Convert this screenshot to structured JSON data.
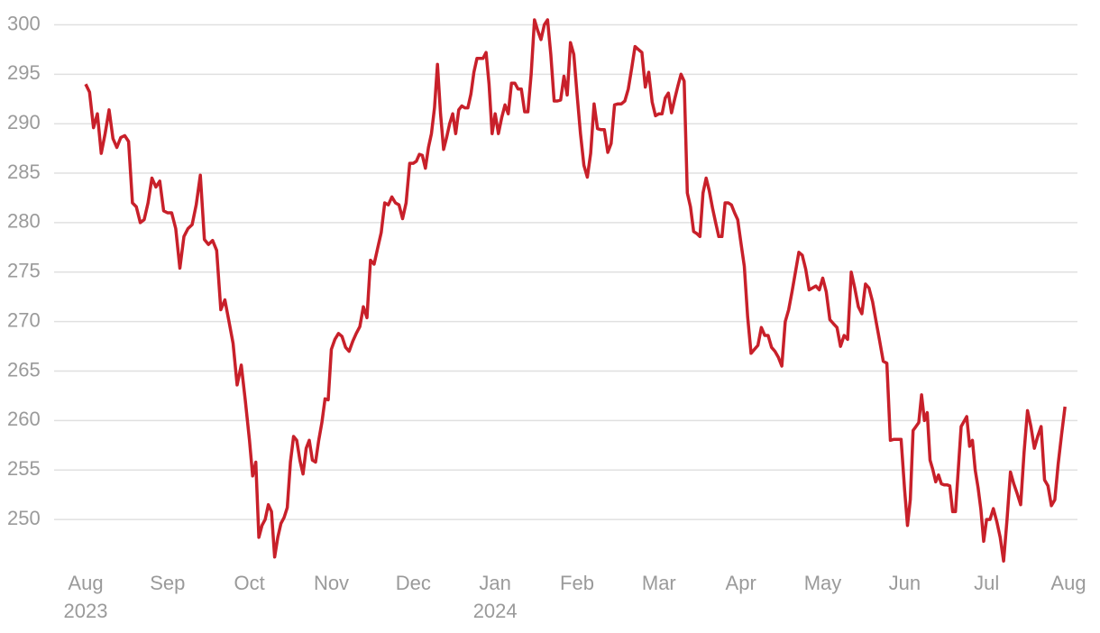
{
  "chart_data": {
    "type": "line",
    "color": "#c8202a",
    "grid": true,
    "ylim": [
      245,
      301.5
    ],
    "yticks": [
      250,
      255,
      260,
      265,
      270,
      275,
      280,
      285,
      290,
      295,
      300
    ],
    "xticks": [
      {
        "value": "2023-08",
        "label": [
          "Aug",
          "2023"
        ]
      },
      {
        "value": "2023-09",
        "label": [
          "Sep"
        ]
      },
      {
        "value": "2023-10",
        "label": [
          "Oct"
        ]
      },
      {
        "value": "2023-11",
        "label": [
          "Nov"
        ]
      },
      {
        "value": "2023-12",
        "label": [
          "Dec"
        ]
      },
      {
        "value": "2024-01",
        "label": [
          "Jan",
          "2024"
        ]
      },
      {
        "value": "2024-02",
        "label": [
          "Feb"
        ]
      },
      {
        "value": "2024-03",
        "label": [
          "Mar"
        ]
      },
      {
        "value": "2024-04",
        "label": [
          "Apr"
        ]
      },
      {
        "value": "2024-05",
        "label": [
          "May"
        ]
      },
      {
        "value": "2024-06",
        "label": [
          "Jun"
        ]
      },
      {
        "value": "2024-07",
        "label": [
          "Jul"
        ]
      },
      {
        "value": "2024-08",
        "label": [
          "Aug"
        ]
      }
    ],
    "x": [
      "2023-08",
      "2023-08",
      "2023-08",
      "2023-08",
      "2023-08",
      "2023-08",
      "2023-08",
      "2023-08",
      "2023-08",
      "2023-08",
      "2023-08",
      "2023-08",
      "2023-08",
      "2023-08",
      "2023-08",
      "2023-08",
      "2023-08",
      "2023-08",
      "2023-08",
      "2023-08",
      "2023-08",
      "2023-09",
      "2023-09",
      "2023-09",
      "2023-09",
      "2023-09",
      "2023-09",
      "2023-09",
      "2023-09",
      "2023-09",
      "2023-09",
      "2023-09",
      "2023-09",
      "2023-09",
      "2023-09",
      "2023-09",
      "2023-09",
      "2023-09",
      "2023-09",
      "2023-09",
      "2023-09",
      "2023-10",
      "2023-10",
      "2023-10",
      "2023-10",
      "2023-10",
      "2023-10",
      "2023-10",
      "2023-10",
      "2023-10",
      "2023-10",
      "2023-10",
      "2023-10",
      "2023-10",
      "2023-10",
      "2023-10",
      "2023-10",
      "2023-10",
      "2023-10",
      "2023-10",
      "2023-10",
      "2023-10",
      "2023-10",
      "2023-10",
      "2023-10",
      "2023-10",
      "2023-10",
      "2023-11",
      "2023-11",
      "2023-11",
      "2023-11",
      "2023-11",
      "2023-11",
      "2023-11",
      "2023-11",
      "2023-11",
      "2023-11",
      "2023-11",
      "2023-11",
      "2023-11",
      "2023-11",
      "2023-11",
      "2023-11",
      "2023-11",
      "2023-11",
      "2023-11",
      "2023-11",
      "2023-11",
      "2023-11",
      "2023-11",
      "2023-12",
      "2023-12",
      "2023-12",
      "2023-12",
      "2023-12",
      "2023-12",
      "2023-12",
      "2023-12",
      "2023-12",
      "2023-12",
      "2023-12",
      "2023-12",
      "2023-12",
      "2023-12",
      "2023-12",
      "2023-12",
      "2023-12",
      "2023-12",
      "2023-12",
      "2023-12",
      "2023-12",
      "2023-12",
      "2023-12",
      "2023-12",
      "2023-12",
      "2023-12",
      "2023-12",
      "2024-01",
      "2024-01",
      "2024-01",
      "2024-01",
      "2024-01",
      "2024-01",
      "2024-01",
      "2024-01",
      "2024-01",
      "2024-01",
      "2024-01",
      "2024-01",
      "2024-01",
      "2024-01",
      "2024-01",
      "2024-01",
      "2024-01",
      "2024-01",
      "2024-01",
      "2024-01",
      "2024-01",
      "2024-01",
      "2024-01",
      "2024-01",
      "2024-01",
      "2024-02",
      "2024-02",
      "2024-02",
      "2024-02",
      "2024-02",
      "2024-02",
      "2024-02",
      "2024-02",
      "2024-02",
      "2024-02",
      "2024-02",
      "2024-02",
      "2024-02",
      "2024-02",
      "2024-02",
      "2024-02",
      "2024-02",
      "2024-02",
      "2024-02",
      "2024-02",
      "2024-02",
      "2024-02",
      "2024-02",
      "2024-02",
      "2024-03",
      "2024-03",
      "2024-03",
      "2024-03",
      "2024-03",
      "2024-03",
      "2024-03",
      "2024-03",
      "2024-03",
      "2024-03",
      "2024-03",
      "2024-03",
      "2024-03",
      "2024-03",
      "2024-03",
      "2024-03",
      "2024-03",
      "2024-03",
      "2024-03",
      "2024-03",
      "2024-03",
      "2024-03",
      "2024-03",
      "2024-03",
      "2024-03",
      "2024-03",
      "2024-04",
      "2024-04",
      "2024-04",
      "2024-04",
      "2024-04",
      "2024-04",
      "2024-04",
      "2024-04",
      "2024-04",
      "2024-04",
      "2024-04",
      "2024-04",
      "2024-04",
      "2024-04",
      "2024-04",
      "2024-04",
      "2024-04",
      "2024-04",
      "2024-04",
      "2024-04",
      "2024-04",
      "2024-04",
      "2024-04",
      "2024-04",
      "2024-05",
      "2024-05",
      "2024-05",
      "2024-05",
      "2024-05",
      "2024-05",
      "2024-05",
      "2024-05",
      "2024-05",
      "2024-05",
      "2024-05",
      "2024-05",
      "2024-05",
      "2024-05",
      "2024-05",
      "2024-05",
      "2024-05",
      "2024-05",
      "2024-05",
      "2024-05",
      "2024-05",
      "2024-05",
      "2024-05",
      "2024-06",
      "2024-06",
      "2024-06",
      "2024-06",
      "2024-06",
      "2024-06",
      "2024-06",
      "2024-06",
      "2024-06",
      "2024-06",
      "2024-06",
      "2024-06",
      "2024-06",
      "2024-06",
      "2024-06",
      "2024-06",
      "2024-06",
      "2024-06",
      "2024-06",
      "2024-06",
      "2024-06",
      "2024-06",
      "2024-06",
      "2024-06",
      "2024-06",
      "2024-06",
      "2024-06",
      "2024-06",
      "2024-06",
      "2024-07",
      "2024-07",
      "2024-07",
      "2024-07",
      "2024-07",
      "2024-07",
      "2024-07",
      "2024-07",
      "2024-07",
      "2024-07",
      "2024-07",
      "2024-07",
      "2024-07",
      "2024-07",
      "2024-07",
      "2024-07",
      "2024-07",
      "2024-07",
      "2024-07",
      "2024-07",
      "2024-07",
      "2024-07",
      "2024-07",
      "2024-07"
    ],
    "values": [
      294,
      293.2,
      289.6,
      291,
      287,
      289,
      291.4,
      288.5,
      287.6,
      288.6,
      288.8,
      288.2,
      282,
      281.6,
      280,
      280.3,
      282,
      284.5,
      283.6,
      284.2,
      281.2,
      281,
      281,
      279.4,
      275.4,
      278.6,
      279.4,
      279.8,
      281.8,
      284.8,
      278.3,
      277.8,
      278.2,
      277.2,
      271.2,
      272.2,
      270,
      267.8,
      263.6,
      265.6,
      262,
      258,
      254.4,
      255.8,
      248.2,
      249.4,
      250,
      251.5,
      250.8,
      246.2,
      248.2,
      249.6,
      250.2,
      251.2,
      255.8,
      258.4,
      258,
      256,
      254.6,
      257.2,
      258,
      256,
      255.8,
      258,
      259.8,
      262.2,
      262.1,
      267.2,
      268.2,
      268.8,
      268.5,
      267.4,
      267,
      268,
      268.8,
      269.5,
      271.5,
      270.4,
      276.2,
      275.8,
      277.4,
      279,
      282,
      281.8,
      282.6,
      282,
      281.8,
      280.4,
      282,
      286,
      286,
      286.2,
      286.9,
      286.8,
      285.5,
      287.6,
      289,
      291.6,
      296,
      291,
      287.4,
      288.6,
      290,
      291,
      289,
      291.4,
      291.8,
      291.6,
      291.6,
      293,
      295.2,
      296.6,
      296.6,
      296.6,
      297.2,
      294,
      289,
      291,
      289,
      290.6,
      291.9,
      291,
      294.1,
      294.1,
      293.5,
      293.5,
      291.2,
      291.2,
      295,
      300.5,
      299.4,
      298.5,
      300,
      300.5,
      297,
      292.3,
      292.3,
      292.4,
      294.8,
      292.9,
      298.2,
      297,
      293,
      289,
      285.8,
      284.6,
      287,
      292,
      289.5,
      289.4,
      289.4,
      287.1,
      288,
      291.9,
      292,
      292,
      292.3,
      293.5,
      295.6,
      297.8,
      297.5,
      297.2,
      293.7,
      295.2,
      292.2,
      290.8,
      291,
      291,
      292.6,
      293.1,
      291.1,
      292.5,
      293.8,
      295,
      294.3,
      283,
      281.6,
      279.1,
      278.9,
      278.6,
      283,
      284.5,
      283.2,
      281.5,
      280,
      278.6,
      278.6,
      282,
      282,
      281.8,
      281,
      280.3,
      278,
      275.6,
      270.5,
      266.8,
      267.2,
      267.6,
      269.4,
      268.6,
      268.6,
      267.4,
      267,
      266.4,
      265.5,
      270,
      271.2,
      273,
      275,
      277,
      276.7,
      275.3,
      273.2,
      273.4,
      273.6,
      273.2,
      274.4,
      273,
      270.2,
      269.8,
      269.4,
      267.5,
      268.6,
      268.2,
      275,
      273.4,
      271.5,
      270.8,
      273.8,
      273.4,
      272,
      270,
      268,
      266,
      265.8,
      258,
      258.1,
      258.1,
      258.1,
      253,
      249.4,
      252,
      259,
      259.4,
      259.8,
      262.6,
      260,
      260.8,
      256,
      255,
      253.8,
      254.5,
      253.6,
      253.5,
      253.5,
      253.4,
      250.8,
      250.8,
      255,
      259.4,
      259.9,
      260.4,
      257.4,
      258,
      255,
      253.2,
      251,
      247.8,
      250,
      250,
      251.1,
      249.8,
      248.2,
      245.8,
      250,
      254.8,
      253.6,
      252.6,
      251.5,
      256.8,
      261,
      259.4,
      257.2,
      258.4,
      259.4,
      254,
      253.4,
      251.4,
      252,
      255.6,
      258.6,
      261.4
    ]
  }
}
